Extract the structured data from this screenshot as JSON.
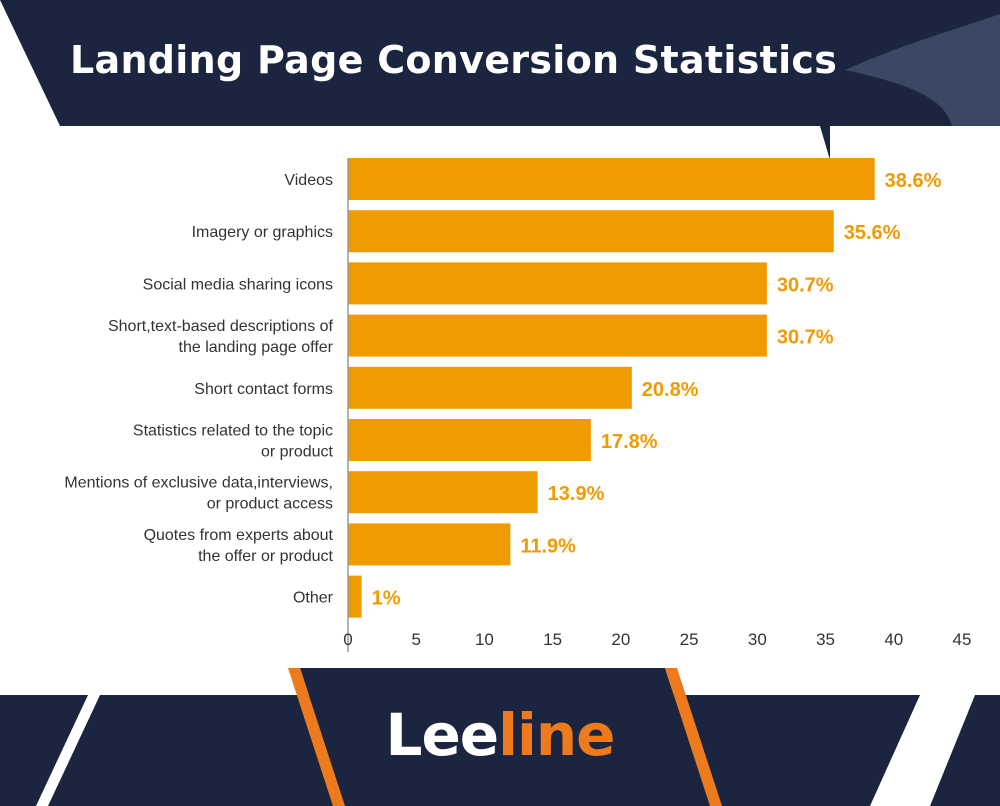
{
  "title": "Landing Page Conversion Statistics",
  "brand": {
    "part1": "Lee",
    "part2": "line"
  },
  "colors": {
    "navy": "#1b2540",
    "bar": "#f29a02",
    "label": "#f29a02",
    "accent": "#ee7a1e",
    "text": "#333333"
  },
  "chart_data": {
    "type": "bar",
    "orientation": "horizontal",
    "categories": [
      [
        "Videos"
      ],
      [
        "Imagery or graphics"
      ],
      [
        "Social media sharing icons"
      ],
      [
        "Short,text-based descriptions of",
        "the landing page offer"
      ],
      [
        "Short contact forms"
      ],
      [
        "Statistics related to the topic",
        "or product"
      ],
      [
        "Mentions of exclusive data,interviews,",
        "or product access"
      ],
      [
        "Quotes from experts about",
        "the offer or product"
      ],
      [
        "Other"
      ]
    ],
    "values": [
      38.6,
      35.6,
      30.7,
      30.7,
      20.8,
      17.8,
      13.9,
      11.9,
      1
    ],
    "value_labels": [
      "38.6%",
      "35.6%",
      "30.7%",
      "30.7%",
      "20.8%",
      "17.8%",
      "13.9%",
      "11.9%",
      "1%"
    ],
    "xticks": [
      0,
      5,
      10,
      15,
      20,
      25,
      30,
      35,
      40,
      45
    ],
    "xlim": [
      0,
      45
    ],
    "xlabel": "",
    "ylabel": "",
    "grid": false,
    "legend": "none"
  }
}
